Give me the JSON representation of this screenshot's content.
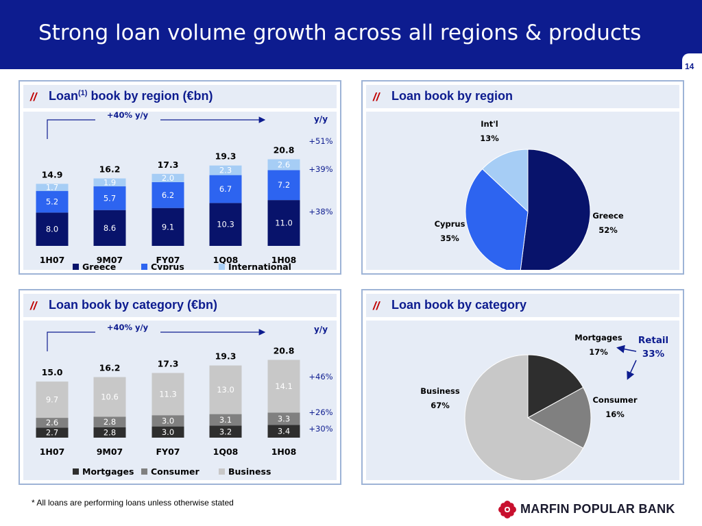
{
  "page": {
    "title": "Strong loan volume growth across all regions & products",
    "page_number": "14",
    "footnote": "* All loans are performing loans unless otherwise stated",
    "logo_text": "MARFIN POPULAR BANK",
    "panel_prefix": "//"
  },
  "colors": {
    "header": "#0d1c8f",
    "greece": "#08136b",
    "cyprus": "#2d64f0",
    "international": "#a6cdf5",
    "mortgages": "#2e2e2e",
    "consumer": "#808080",
    "business": "#c8c8c8",
    "accent_red": "#c00000"
  },
  "chart_data": [
    {
      "type": "bar",
      "stacked": true,
      "title": "Loan",
      "title_sup": "(1)",
      "title_rest": " book by region (€bn)",
      "categories": [
        "1H07",
        "9M07",
        "FY07",
        "1Q08",
        "1H08"
      ],
      "series": [
        {
          "name": "Greece",
          "values": [
            8.0,
            8.6,
            9.1,
            10.3,
            11.0
          ],
          "labels": [
            "8.0",
            "8.6",
            "9.1",
            "10.3",
            "11.0"
          ]
        },
        {
          "name": "Cyprus",
          "values": [
            5.2,
            5.7,
            6.2,
            6.7,
            7.2
          ],
          "labels": [
            "5.2",
            "5.7",
            "6.2",
            "6.7",
            "7.2"
          ]
        },
        {
          "name": "International",
          "values": [
            1.7,
            1.9,
            2.0,
            2.3,
            2.6
          ],
          "labels": [
            "1.7",
            "1.9",
            "2.0",
            "2.3",
            "2.6"
          ]
        }
      ],
      "totals": [
        "14.9",
        "16.2",
        "17.3",
        "19.3",
        "20.8"
      ],
      "growth_note": "+40% y/y",
      "yy_header": "y/y",
      "yy_labels": [
        "+51%",
        "+39%",
        "+38%"
      ],
      "legend": "bottom"
    },
    {
      "type": "pie",
      "title": "Loan book by region",
      "slices": [
        {
          "name": "Greece",
          "value": 52,
          "label": "52%"
        },
        {
          "name": "Cyprus",
          "value": 35,
          "label": "35%"
        },
        {
          "name": "Int'l",
          "value": 13,
          "label": "13%"
        }
      ]
    },
    {
      "type": "bar",
      "stacked": true,
      "title": "Loan book by category (€bn)",
      "categories": [
        "1H07",
        "9M07",
        "FY07",
        "1Q08",
        "1H08"
      ],
      "series": [
        {
          "name": "Mortgages",
          "values": [
            2.7,
            2.8,
            3.0,
            3.2,
            3.4
          ],
          "labels": [
            "2.7",
            "2.8",
            "3.0",
            "3.2",
            "3.4"
          ]
        },
        {
          "name": "Consumer",
          "values": [
            2.6,
            2.8,
            3.0,
            3.1,
            3.3
          ],
          "labels": [
            "2.6",
            "2.8",
            "3.0",
            "3.1",
            "3.3"
          ]
        },
        {
          "name": "Business",
          "values": [
            9.7,
            10.6,
            11.3,
            13.0,
            14.1
          ],
          "labels": [
            "9.7",
            "10.6",
            "11.3",
            "13.0",
            "14.1"
          ]
        }
      ],
      "totals": [
        "15.0",
        "16.2",
        "17.3",
        "19.3",
        "20.8"
      ],
      "growth_note": "+40% y/y",
      "yy_header": "y/y",
      "yy_labels": [
        "+46%",
        "+26%",
        "+30%"
      ],
      "legend": "bottom"
    },
    {
      "type": "pie",
      "title": "Loan book by category",
      "slices": [
        {
          "name": "Mortgages",
          "value": 17,
          "label": "17%"
        },
        {
          "name": "Consumer",
          "value": 16,
          "label": "16%"
        },
        {
          "name": "Business",
          "value": 67,
          "label": "67%"
        }
      ],
      "annotation": {
        "line1": "Retail",
        "line2": "33%"
      }
    }
  ]
}
